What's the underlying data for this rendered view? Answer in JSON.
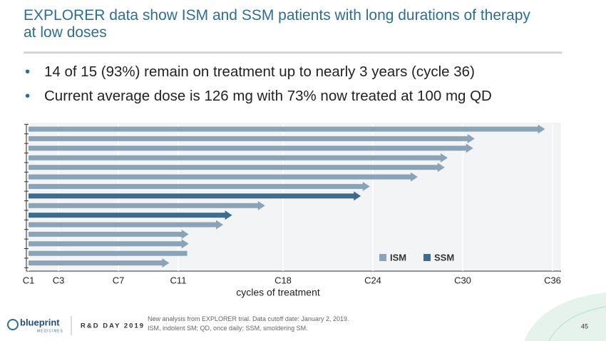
{
  "slide": {
    "title": "EXPLORER data show ISM and SSM patients with long durations of therapy at low doses",
    "bullets": [
      "14 of 15 (93%) remain on treatment up to nearly 3 years (cycle 36)",
      "Current average dose is 126 mg with 73% now treated at 100 mg QD"
    ],
    "footnote": [
      "New analysis from EXPLORER trial. Data cutoff date: January 2, 2019.",
      "ISM, indolent SM; QD, once daily; SSM, smoldering SM."
    ],
    "event": "R&D DAY 2019",
    "logo": "blueprint",
    "logo_sub": "MEDICINES",
    "page": 45
  },
  "chart_data": {
    "type": "bar",
    "orientation": "horizontal",
    "xlabel": "cycles of treatment",
    "series": [
      {
        "name": "ISM",
        "color": "#8ba3b7",
        "values": [
          35.5,
          30.8,
          30.7,
          29.0,
          28.8,
          27.0,
          23.8,
          null,
          16.8,
          null,
          14.0,
          11.7,
          11.7,
          11.6,
          10.4
        ]
      },
      {
        "name": "SSM",
        "color": "#3f6b8d",
        "values": [
          null,
          null,
          null,
          null,
          null,
          null,
          null,
          23.2,
          null,
          14.6,
          null,
          null,
          null,
          null,
          null
        ]
      }
    ],
    "ongoing": [
      true,
      true,
      true,
      true,
      true,
      true,
      true,
      true,
      true,
      true,
      true,
      true,
      true,
      false,
      true
    ],
    "xlim": [
      1,
      36
    ],
    "xticks": [
      {
        "value": 1,
        "label": "C1"
      },
      {
        "value": 3,
        "label": "C3"
      },
      {
        "value": 7,
        "label": "C7"
      },
      {
        "value": 11,
        "label": "C11"
      },
      {
        "value": 18,
        "label": "C18"
      },
      {
        "value": 24,
        "label": "C24"
      },
      {
        "value": 30,
        "label": "C30"
      },
      {
        "value": 36,
        "label": "C36"
      }
    ],
    "grid": true,
    "legend": "lower right"
  }
}
